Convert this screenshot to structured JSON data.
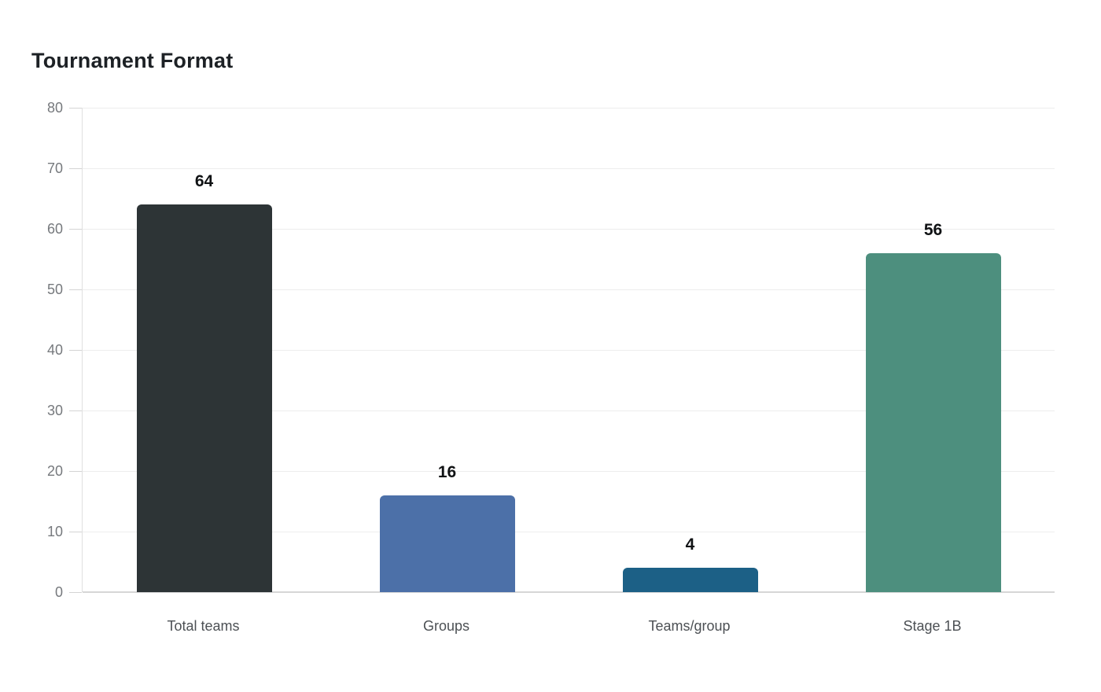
{
  "page": {
    "title": "Tournament Format"
  },
  "chart_data": {
    "type": "bar",
    "title": "Tournament Format",
    "categories": [
      "Total teams",
      "Groups",
      "Teams/group",
      "Stage 1B"
    ],
    "values": [
      64,
      16,
      4,
      56
    ],
    "value_labels": [
      "64",
      "16",
      "4",
      "56"
    ],
    "bar_colors": [
      "#2d3436",
      "#4c70a8",
      "#1c6086",
      "#4d8f7e"
    ],
    "ylim": [
      0,
      80
    ],
    "yticks": [
      0,
      10,
      20,
      30,
      40,
      50,
      60,
      70,
      80
    ],
    "xlabel": "",
    "ylabel": "",
    "grid": true,
    "legend": false
  },
  "style_colors": {
    "title_text": "#1d2125",
    "y_tick_text": "#76797d",
    "x_label_text": "#4c5054",
    "value_label_text": "#101214",
    "gridline": "#ededed",
    "axis_baseline": "#d6d6d6",
    "plot_left_border": "#e0e0e0"
  }
}
